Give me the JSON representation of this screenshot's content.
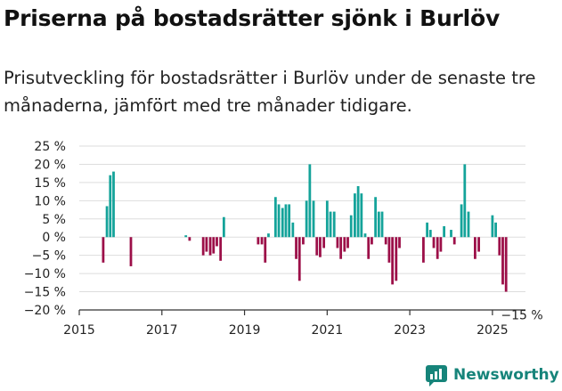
{
  "header": {
    "title": "Priserna på bostadsrätter sjönk i Burlöv",
    "subtitle": "Prisutveckling för bostadsrätter i Burlöv under de senaste tre månaderna, jämfört med tre månader tidigare."
  },
  "brand": {
    "name": "Newsworthy",
    "icon": "newsworthy-logo-icon"
  },
  "colors": {
    "positive": "#14a39a",
    "negative": "#9c0f48",
    "axis": "#333333",
    "grid": "#dddddd"
  },
  "chart_data": {
    "type": "bar",
    "xlabel": "",
    "ylabel": "",
    "ylim": [
      -20,
      25
    ],
    "xlim": [
      2015,
      2025.8
    ],
    "grid": true,
    "y_ticks": [
      25,
      20,
      15,
      10,
      5,
      0,
      -5,
      -10,
      -15,
      -20
    ],
    "y_tick_labels": [
      "25 %",
      "20 %",
      "15 %",
      "10 %",
      "5 %",
      "0 %",
      "−5 %",
      "−10 %",
      "−15 %",
      "−20 %"
    ],
    "x_ticks": [
      2015,
      2017,
      2019,
      2021,
      2023,
      2025
    ],
    "x_tick_labels": [
      "2015",
      "2017",
      "2019",
      "2021",
      "2023",
      "2025"
    ],
    "annotation": "−15 %",
    "series": [
      {
        "x": [
          2015.58,
          2015.67,
          2015.75,
          2015.83,
          2016.25,
          2017.58,
          2017.67,
          2018.0,
          2018.08,
          2018.17,
          2018.25,
          2018.33,
          2018.42,
          2018.5,
          2019.33,
          2019.42,
          2019.5,
          2019.58,
          2019.75,
          2019.83,
          2019.92,
          2020.0,
          2020.08,
          2020.17,
          2020.25,
          2020.33,
          2020.42,
          2020.5,
          2020.58,
          2020.67,
          2020.75,
          2020.83,
          2020.92,
          2021.0,
          2021.08,
          2021.17,
          2021.25,
          2021.33,
          2021.42,
          2021.5,
          2021.58,
          2021.67,
          2021.75,
          2021.83,
          2021.92,
          2022.0,
          2022.08,
          2022.17,
          2022.25,
          2022.33,
          2022.42,
          2022.5,
          2022.58,
          2022.67,
          2022.75,
          2023.33,
          2023.42,
          2023.5,
          2023.58,
          2023.67,
          2023.75,
          2023.83,
          2024.0,
          2024.08,
          2024.25,
          2024.33,
          2024.42,
          2024.58,
          2024.67,
          2025.0,
          2025.08,
          2025.17,
          2025.25,
          2025.33
        ],
        "values": [
          -7,
          8.5,
          17,
          18,
          -8,
          0.5,
          -1,
          -5,
          -4,
          -5,
          -4.5,
          -2.5,
          -6.5,
          5.5,
          -2,
          -2,
          -7,
          1,
          11,
          9,
          8,
          9,
          9,
          4,
          -6,
          -12,
          -2,
          10,
          20,
          10,
          -5,
          -5.5,
          -3,
          10,
          7,
          7,
          -3,
          -6,
          -4,
          -3,
          6,
          12,
          14,
          12,
          1,
          -6,
          -2,
          11,
          7,
          7,
          -2,
          -7,
          -13,
          -12,
          -3,
          -7,
          4,
          2,
          -3,
          -6,
          -4,
          3,
          2,
          -2,
          9,
          20,
          7,
          -6,
          -4,
          6,
          4,
          -5,
          -13,
          -15
        ]
      }
    ]
  }
}
